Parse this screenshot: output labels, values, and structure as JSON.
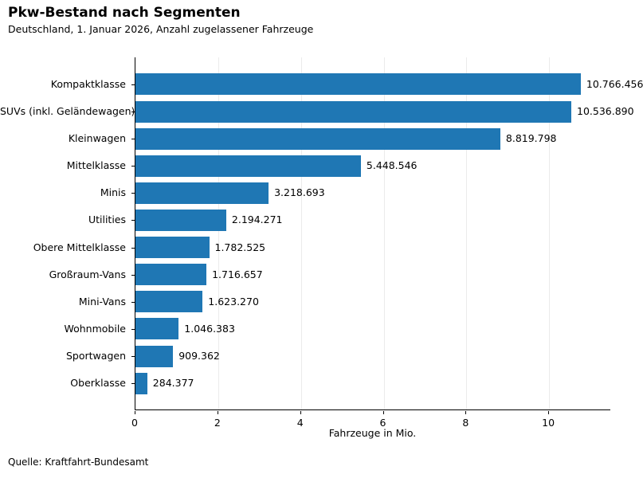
{
  "header": {
    "title": "Pkw-Bestand nach Segmenten",
    "subtitle": "Deutschland, 1. Januar 2026, Anzahl zugelassener Fahrzeuge"
  },
  "footer": {
    "source": "Quelle: Kraftfahrt-Bundesamt"
  },
  "chart_data": {
    "type": "bar",
    "orientation": "horizontal",
    "title": "Pkw-Bestand nach Segmenten",
    "subtitle": "Deutschland, 1. Januar 2026, Anzahl zugelassener Fahrzeuge",
    "categories": [
      "Kompaktklasse",
      "SUVs (inkl. Geländewagen)",
      "Kleinwagen",
      "Mittelklasse",
      "Minis",
      "Utilities",
      "Obere Mittelklasse",
      "Großraum-Vans",
      "Mini-Vans",
      "Wohnmobile",
      "Sportwagen",
      "Oberklasse"
    ],
    "values": [
      10766456,
      10536890,
      8819798,
      5448546,
      3218693,
      2194271,
      1782525,
      1716657,
      1623270,
      1046383,
      909362,
      284377
    ],
    "value_labels": [
      "10.766.456",
      "10.536.890",
      "8.819.798",
      "5.448.546",
      "3.218.693",
      "2.194.271",
      "1.782.525",
      "1.716.657",
      "1.623.270",
      "1.046.383",
      "909.362",
      "284.377"
    ],
    "xlabel": "Fahrzeuge in Mio.",
    "xlim": [
      0,
      11.5
    ],
    "xticks": [
      0,
      2,
      4,
      6,
      8,
      10
    ],
    "unit_divisor": 1000000,
    "grid": true,
    "legend": "none",
    "bar_color": "#1f77b4",
    "grid_color": "#ebebeb",
    "axis_color": "#000000"
  }
}
